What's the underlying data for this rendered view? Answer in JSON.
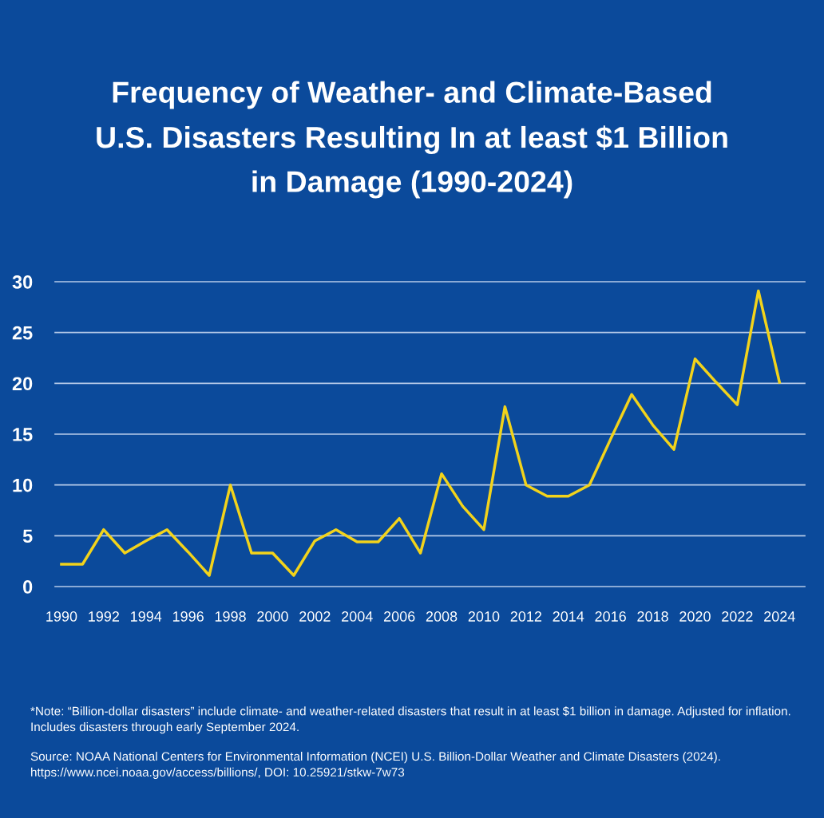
{
  "chart_data": {
    "type": "line",
    "title": "Frequency of Weather- and Climate-Based\nU.S. Disasters Resulting In at least $1 Billion\nin Damage (1990-2024)",
    "x": [
      1990,
      1991,
      1992,
      1993,
      1994,
      1995,
      1996,
      1997,
      1998,
      1999,
      2000,
      2001,
      2002,
      2003,
      2004,
      2005,
      2006,
      2007,
      2008,
      2009,
      2010,
      2011,
      2012,
      2013,
      2014,
      2015,
      2016,
      2017,
      2018,
      2019,
      2020,
      2021,
      2022,
      2023,
      2024
    ],
    "series": [
      {
        "color": "#f2d31b",
        "values": [
          2.2,
          2.2,
          5.6,
          3.3,
          4.5,
          5.6,
          3.4,
          1.1,
          10,
          3.3,
          3.3,
          1.1,
          4.5,
          5.6,
          4.4,
          4.4,
          6.7,
          3.3,
          11.1,
          7.9,
          5.6,
          17.7,
          10,
          8.9,
          8.9,
          10,
          14.5,
          18.9,
          15.9,
          13.5,
          22.4,
          20.1,
          17.9,
          29.1,
          20.1
        ]
      }
    ],
    "xlim": [
      1989.7,
      2025.2
    ],
    "xticks": [
      1990,
      1992,
      1994,
      1996,
      1998,
      2000,
      2002,
      2004,
      2006,
      2008,
      2010,
      2012,
      2014,
      2016,
      2018,
      2020,
      2022,
      2024
    ],
    "ylim": [
      0,
      30
    ],
    "yticks": [
      0,
      5,
      10,
      15,
      20,
      25,
      30
    ],
    "grid": "y",
    "legend": false,
    "marker": "none",
    "line_style": "solid",
    "annotations": [
      "*Note: “Billion-dollar disasters” include climate- and weather-related disasters that result in at least $1 billion in damage. Adjusted for inflation. Includes disasters through early September 2024.",
      "Source: NOAA National Centers for Environmental Information (NCEI) U.S. Billion-Dollar Weather and Climate Disasters (2024). https://www.ncei.noaa.gov/access/billions/, DOI: 10.25921/stkw-7w73"
    ]
  }
}
